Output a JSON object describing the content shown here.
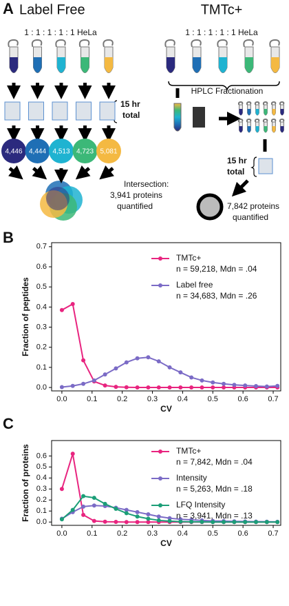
{
  "diagram": {
    "panel": "A",
    "label_free": {
      "title": "Label Free",
      "ratio": "1 : 1 : 1 : 1 : 1 HeLa",
      "time": [
        "15 hr",
        "total"
      ],
      "counts": [
        "4,446",
        "4,444",
        "4,513",
        "4,723",
        "5,081"
      ],
      "result": [
        "Intersection:",
        "3,941 proteins",
        "quantified"
      ]
    },
    "tmtc": {
      "title": "TMTc+",
      "ratio": "1 : 1 : 1 : 1 : 1 HeLa",
      "step": "HPLC Fractionation",
      "time": [
        "15 hr",
        "total"
      ],
      "result": [
        "7,842 proteins",
        "quantified"
      ]
    }
  },
  "chart_data": [
    {
      "type": "line",
      "panel": "B",
      "xlabel": "CV",
      "ylabel": "Fraction of peptides",
      "x": [
        0,
        0.036,
        0.071,
        0.107,
        0.143,
        0.179,
        0.214,
        0.25,
        0.286,
        0.321,
        0.357,
        0.393,
        0.429,
        0.464,
        0.5,
        0.536,
        0.571,
        0.607,
        0.643,
        0.679,
        0.714
      ],
      "series": [
        {
          "name": "TMTc+",
          "note": "n = 59,218, Mdn = .04",
          "color": "#e8247f",
          "values": [
            0.385,
            0.415,
            0.135,
            0.03,
            0.01,
            0.003,
            0.001,
            0,
            0,
            0,
            0,
            0,
            0,
            0,
            0,
            0,
            0,
            0,
            0,
            0,
            0
          ]
        },
        {
          "name": "Label free",
          "note": "n = 34,683, Mdn = .26",
          "color": "#7b6bc6",
          "values": [
            0.002,
            0.008,
            0.018,
            0.035,
            0.065,
            0.095,
            0.125,
            0.145,
            0.15,
            0.13,
            0.1,
            0.075,
            0.05,
            0.035,
            0.025,
            0.018,
            0.013,
            0.01,
            0.007,
            0.005,
            0.008
          ]
        }
      ],
      "xlim": [
        -0.034,
        0.725
      ],
      "xticks": [
        {
          "value": 0,
          "label": "0.0"
        },
        0.1,
        0.2,
        0.3,
        0.4,
        0.5,
        0.6,
        0.7
      ],
      "ylim": [
        -0.017,
        0.72
      ],
      "yticks": [
        {
          "value": 0,
          "label": "0.0"
        },
        0.1,
        0.2,
        0.3,
        0.4,
        0.5,
        0.6,
        0.7
      ],
      "legend": "upper right"
    },
    {
      "type": "line",
      "panel": "C",
      "xlabel": "CV",
      "ylabel": "Fraction of proteins",
      "x": [
        0,
        0.036,
        0.071,
        0.107,
        0.143,
        0.179,
        0.214,
        0.25,
        0.286,
        0.321,
        0.357,
        0.393,
        0.429,
        0.464,
        0.5,
        0.536,
        0.571,
        0.607,
        0.643,
        0.679,
        0.714
      ],
      "series": [
        {
          "name": "TMTc+",
          "note": "n = 7,842, Mdn = .04",
          "color": "#e8247f",
          "values": [
            0.3,
            0.62,
            0.065,
            0.01,
            0.003,
            0.001,
            0,
            0,
            0,
            0,
            0,
            0,
            0,
            0,
            0,
            0,
            0,
            0,
            0,
            0,
            0
          ]
        },
        {
          "name": "Intensity",
          "note": "n = 5,263, Mdn = .18",
          "color": "#7b6bc6",
          "values": [
            0.03,
            0.09,
            0.14,
            0.15,
            0.145,
            0.13,
            0.11,
            0.09,
            0.07,
            0.05,
            0.035,
            0.025,
            0.02,
            0.015,
            0.01,
            0.008,
            0.006,
            0.005,
            0.004,
            0.003,
            0.002
          ]
        },
        {
          "name": "LFQ Intensity",
          "note": "n = 3,941, Mdn = .13",
          "color": "#1b9e77",
          "values": [
            0.025,
            0.11,
            0.235,
            0.22,
            0.165,
            0.12,
            0.08,
            0.05,
            0.03,
            0.015,
            0.008,
            0.004,
            0.002,
            0.001,
            0,
            0,
            0,
            0,
            0,
            0,
            0
          ]
        }
      ],
      "xlim": [
        -0.034,
        0.725
      ],
      "xticks": [
        {
          "value": 0,
          "label": "0.0"
        },
        0.1,
        0.2,
        0.3,
        0.4,
        0.5,
        0.6,
        0.7
      ],
      "ylim": [
        -0.03,
        0.74
      ],
      "yticks": [
        {
          "value": 0,
          "label": "0.0"
        },
        0.1,
        0.2,
        0.3,
        0.4,
        0.5,
        0.6
      ],
      "legend": "upper right"
    }
  ]
}
